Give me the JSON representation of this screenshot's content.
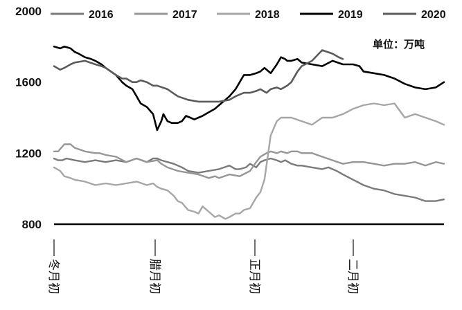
{
  "chart_data": {
    "type": "line",
    "unit_label": "单位：万吨",
    "ylim": [
      800,
      2000
    ],
    "y_ticks": [
      800,
      1200,
      1600,
      2000
    ],
    "x_categories": [
      "冬月初",
      "腊月初",
      "正月初",
      "二月初"
    ],
    "legend_position": "top",
    "grid": false,
    "series": [
      {
        "name": "2016",
        "color": "#7a7a7a",
        "width": 2.4,
        "x": [
          0,
          2,
          4,
          6,
          10,
          15,
          20,
          25,
          30,
          35,
          40,
          45,
          48,
          50,
          52,
          55,
          58,
          60,
          62,
          65,
          70,
          75,
          80,
          85,
          88,
          90,
          93,
          95,
          98,
          100,
          102,
          105,
          108,
          110,
          112,
          115,
          118,
          120,
          125,
          130,
          133,
          137,
          140,
          145,
          150,
          155,
          160,
          165,
          170,
          175,
          180,
          185,
          189
        ],
        "y": [
          1170,
          1160,
          1160,
          1170,
          1160,
          1150,
          1160,
          1150,
          1160,
          1150,
          1170,
          1150,
          1170,
          1170,
          1160,
          1150,
          1140,
          1130,
          1120,
          1100,
          1090,
          1100,
          1110,
          1130,
          1110,
          1110,
          1120,
          1140,
          1120,
          1150,
          1160,
          1170,
          1160,
          1150,
          1160,
          1140,
          1130,
          1130,
          1120,
          1110,
          1120,
          1100,
          1080,
          1050,
          1020,
          1000,
          990,
          970,
          960,
          950,
          930,
          930,
          940
        ]
      },
      {
        "name": "2017",
        "color": "#969696",
        "width": 2.4,
        "x": [
          0,
          2,
          5,
          8,
          10,
          15,
          20,
          22,
          25,
          30,
          35,
          40,
          45,
          50,
          52,
          55,
          60,
          65,
          70,
          75,
          78,
          80,
          85,
          90,
          95,
          98,
          100,
          103,
          105,
          108,
          110,
          113,
          115,
          118,
          120,
          125,
          130,
          135,
          140,
          145,
          150,
          155,
          160,
          165,
          170,
          175,
          180,
          185,
          189
        ],
        "y": [
          1210,
          1210,
          1250,
          1250,
          1230,
          1210,
          1200,
          1200,
          1190,
          1180,
          1150,
          1170,
          1150,
          1160,
          1140,
          1120,
          1100,
          1090,
          1080,
          1060,
          1070,
          1060,
          1080,
          1070,
          1100,
          1150,
          1180,
          1200,
          1210,
          1200,
          1210,
          1200,
          1210,
          1210,
          1200,
          1200,
          1180,
          1160,
          1140,
          1150,
          1150,
          1140,
          1130,
          1140,
          1140,
          1150,
          1130,
          1150,
          1140
        ]
      },
      {
        "name": "2018",
        "color": "#a6a6a6",
        "width": 2.4,
        "x": [
          0,
          3,
          5,
          8,
          10,
          15,
          20,
          25,
          30,
          35,
          40,
          45,
          48,
          50,
          52,
          55,
          58,
          60,
          62,
          65,
          68,
          70,
          72,
          75,
          78,
          80,
          83,
          85,
          88,
          90,
          92,
          95,
          98,
          100,
          102,
          105,
          108,
          110,
          115,
          120,
          125,
          130,
          135,
          140,
          145,
          150,
          155,
          160,
          165,
          170,
          175,
          180,
          185,
          189
        ],
        "y": [
          1120,
          1100,
          1070,
          1060,
          1050,
          1040,
          1020,
          1030,
          1020,
          1030,
          1040,
          1020,
          1030,
          1010,
          1000,
          990,
          960,
          930,
          920,
          880,
          870,
          860,
          900,
          870,
          840,
          850,
          830,
          840,
          860,
          860,
          880,
          890,
          950,
          980,
          1050,
          1300,
          1380,
          1400,
          1400,
          1380,
          1360,
          1400,
          1400,
          1420,
          1450,
          1470,
          1480,
          1470,
          1480,
          1400,
          1420,
          1400,
          1380,
          1360
        ]
      },
      {
        "name": "2019",
        "color": "#000000",
        "width": 2.6,
        "x": [
          0,
          3,
          5,
          8,
          10,
          12,
          15,
          18,
          20,
          23,
          25,
          30,
          33,
          35,
          38,
          40,
          42,
          45,
          48,
          50,
          52,
          53,
          55,
          57,
          60,
          62,
          64,
          66,
          68,
          70,
          72,
          75,
          78,
          80,
          82,
          85,
          88,
          90,
          92,
          95,
          98,
          100,
          102,
          105,
          108,
          110,
          112,
          113,
          115,
          118,
          120,
          125,
          130,
          135,
          140,
          145,
          148,
          150,
          155,
          160,
          165,
          170,
          175,
          180,
          185,
          189
        ],
        "y": [
          1800,
          1790,
          1800,
          1790,
          1770,
          1760,
          1740,
          1730,
          1720,
          1700,
          1680,
          1640,
          1600,
          1580,
          1560,
          1520,
          1480,
          1460,
          1420,
          1330,
          1380,
          1420,
          1380,
          1370,
          1370,
          1380,
          1410,
          1400,
          1390,
          1400,
          1410,
          1430,
          1450,
          1470,
          1490,
          1520,
          1560,
          1600,
          1640,
          1640,
          1650,
          1660,
          1680,
          1650,
          1700,
          1740,
          1730,
          1720,
          1720,
          1730,
          1710,
          1700,
          1690,
          1720,
          1700,
          1700,
          1690,
          1660,
          1650,
          1640,
          1620,
          1590,
          1570,
          1560,
          1570,
          1600
        ]
      },
      {
        "name": "2020",
        "color": "#5b5b5b",
        "width": 2.6,
        "x": [
          0,
          3,
          5,
          8,
          10,
          15,
          20,
          23,
          25,
          30,
          33,
          35,
          38,
          40,
          42,
          45,
          48,
          50,
          55,
          60,
          65,
          70,
          75,
          80,
          85,
          88,
          90,
          92,
          95,
          98,
          100,
          103,
          105,
          108,
          110,
          113,
          115,
          118,
          120,
          125,
          130,
          135,
          138,
          140
        ],
        "y": [
          1690,
          1670,
          1680,
          1700,
          1710,
          1720,
          1700,
          1690,
          1680,
          1640,
          1620,
          1620,
          1600,
          1600,
          1610,
          1600,
          1580,
          1580,
          1560,
          1520,
          1500,
          1490,
          1490,
          1490,
          1500,
          1520,
          1530,
          1540,
          1540,
          1550,
          1560,
          1540,
          1560,
          1570,
          1560,
          1580,
          1600,
          1660,
          1690,
          1720,
          1780,
          1760,
          1740,
          1730
        ]
      }
    ]
  }
}
